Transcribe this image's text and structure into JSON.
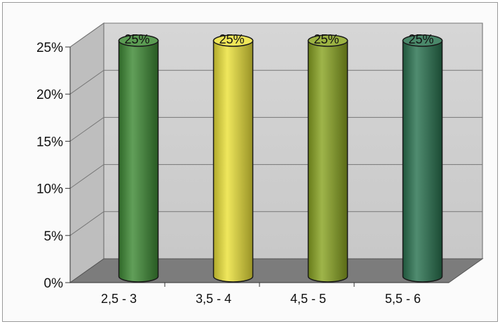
{
  "chart_data": {
    "type": "bar",
    "style": "3d-cylinder",
    "categories": [
      "2,5 - 3",
      "3,5 - 4",
      "4,5 - 5",
      "5,5 - 6"
    ],
    "values": [
      25,
      25,
      25,
      25
    ],
    "data_labels": [
      "25%",
      "25%",
      "25%",
      "25%"
    ],
    "y_tick_labels": [
      "0%",
      "5%",
      "10%",
      "15%",
      "20%",
      "25%"
    ],
    "ylim": [
      0,
      25
    ],
    "grid": true,
    "legend": "none",
    "colors": {
      "bars": [
        "#3e8a35",
        "#ece23a",
        "#8aa522",
        "#2a7350"
      ],
      "wall": "#c8c8c8",
      "floor": "#7c7c7c"
    }
  }
}
